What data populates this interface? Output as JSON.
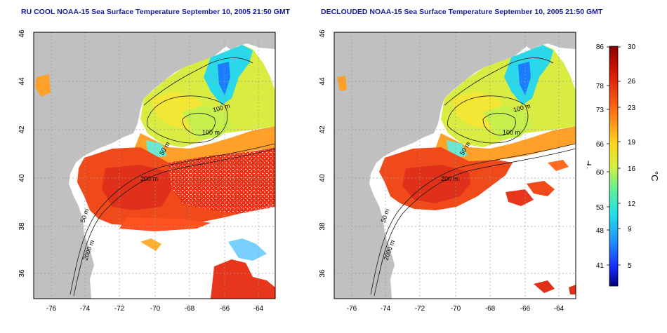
{
  "titles": {
    "left": "RU COOL NOAA-15 Sea Surface Temperature September 10, 2005 21:50 GMT",
    "right": "DECLOUDED NOAA-15 Sea Surface Temperature September 10, 2005 21:50 GMT"
  },
  "axes": {
    "lon_ticks": [
      "-76",
      "-74",
      "-72",
      "-70",
      "-68",
      "-66",
      "-64"
    ],
    "lat_ticks": [
      "36",
      "38",
      "40",
      "42",
      "44",
      "46"
    ]
  },
  "contours": {
    "c100a": "100 m",
    "c100b": "100 m",
    "c50": "50 m",
    "c200": "200 m",
    "c50b": "50 m",
    "c2000": "2000 m"
  },
  "colorbar": {
    "unit_f": "°F",
    "unit_c": "°C",
    "f_ticks": [
      "86",
      "78",
      "73",
      "66",
      "60",
      "53",
      "48",
      "41"
    ],
    "c_ticks": [
      "30",
      "26",
      "23",
      "19",
      "16",
      "12",
      "9",
      "5"
    ]
  },
  "colors": {
    "land": "#c0c0c0",
    "title": "#1a1aa0"
  }
}
